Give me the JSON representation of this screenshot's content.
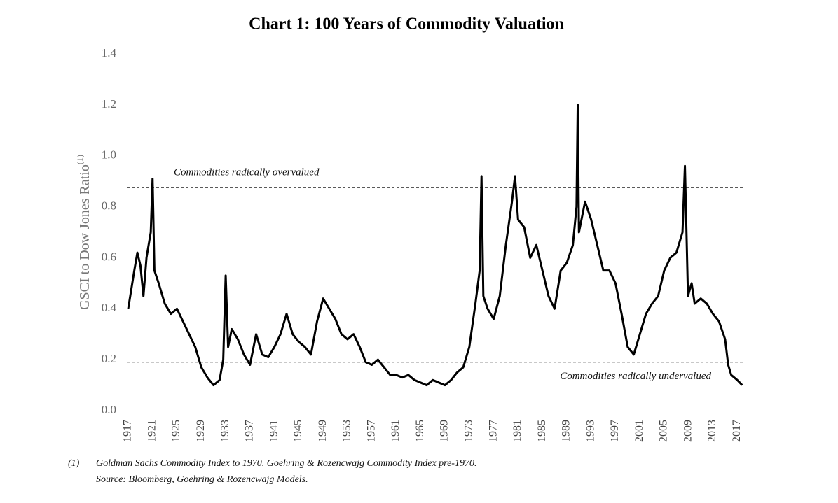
{
  "chart_data": {
    "type": "line",
    "title": "Chart 1: 100 Years of Commodity Valuation",
    "y_label": "GSCI to Dow Jones Ratio",
    "y_label_note": "(1)",
    "x": [
      1917,
      1918,
      1918.5,
      1919,
      1919.5,
      1920,
      1920.7,
      1921,
      1921.3,
      1922,
      1923,
      1924,
      1925,
      1926,
      1927,
      1928,
      1929,
      1930,
      1931,
      1932,
      1932.6,
      1933,
      1933.4,
      1934,
      1935,
      1936,
      1937,
      1938,
      1939,
      1940,
      1941,
      1942,
      1943,
      1944,
      1945,
      1946,
      1947,
      1948,
      1949,
      1950,
      1951,
      1952,
      1953,
      1954,
      1955,
      1956,
      1957,
      1958,
      1959,
      1960,
      1961,
      1962,
      1963,
      1964,
      1965,
      1966,
      1967,
      1968,
      1969,
      1970,
      1971,
      1972,
      1973,
      1974,
      1974.7,
      1975,
      1975.3,
      1976,
      1977,
      1978,
      1979,
      1980,
      1980.5,
      1981,
      1982,
      1983,
      1984,
      1985,
      1986,
      1987,
      1988,
      1989,
      1990,
      1990.6,
      1990.8,
      1991,
      1992,
      1993,
      1994,
      1995,
      1996,
      1997,
      1998,
      1999,
      2000,
      2001,
      2002,
      2003,
      2004,
      2005,
      2006,
      2007,
      2008,
      2008.4,
      2008.9,
      2009.5,
      2010,
      2011,
      2012,
      2013,
      2014,
      2015,
      2015.5,
      2016,
      2017,
      2017.8
    ],
    "series": [
      {
        "color": "#000000",
        "values": [
          0.4,
          0.55,
          0.62,
          0.57,
          0.45,
          0.6,
          0.7,
          0.91,
          0.55,
          0.5,
          0.42,
          0.38,
          0.4,
          0.35,
          0.3,
          0.25,
          0.17,
          0.13,
          0.1,
          0.12,
          0.2,
          0.53,
          0.25,
          0.32,
          0.28,
          0.22,
          0.18,
          0.3,
          0.22,
          0.21,
          0.25,
          0.3,
          0.38,
          0.3,
          0.27,
          0.25,
          0.22,
          0.35,
          0.44,
          0.4,
          0.36,
          0.3,
          0.28,
          0.3,
          0.25,
          0.19,
          0.18,
          0.2,
          0.17,
          0.14,
          0.14,
          0.13,
          0.14,
          0.12,
          0.11,
          0.1,
          0.12,
          0.11,
          0.1,
          0.12,
          0.15,
          0.17,
          0.25,
          0.42,
          0.55,
          0.92,
          0.45,
          0.4,
          0.36,
          0.45,
          0.65,
          0.82,
          0.92,
          0.75,
          0.72,
          0.6,
          0.65,
          0.55,
          0.45,
          0.4,
          0.55,
          0.58,
          0.65,
          0.8,
          1.2,
          0.7,
          0.82,
          0.75,
          0.65,
          0.55,
          0.55,
          0.5,
          0.38,
          0.25,
          0.22,
          0.3,
          0.38,
          0.42,
          0.45,
          0.55,
          0.6,
          0.62,
          0.7,
          0.96,
          0.45,
          0.5,
          0.42,
          0.44,
          0.42,
          0.38,
          0.35,
          0.28,
          0.18,
          0.14,
          0.12,
          0.1
        ]
      }
    ],
    "xlim": [
      1917,
      2018
    ],
    "xticks": [
      1917,
      1921,
      1925,
      1929,
      1933,
      1937,
      1941,
      1945,
      1949,
      1953,
      1957,
      1961,
      1965,
      1969,
      1973,
      1977,
      1981,
      1985,
      1989,
      1993,
      1997,
      2001,
      2005,
      2009,
      2013,
      2017
    ],
    "ylim": [
      0,
      1.4
    ],
    "yticks": [
      {
        "value": 0,
        "label": "0.0"
      },
      0.2,
      0.4,
      0.6,
      0.8,
      {
        "value": 1,
        "label": "1.0"
      },
      1.2,
      1.4
    ],
    "reference_lines": [
      {
        "value": 0.875,
        "label": "Commodities radically overvalued"
      },
      {
        "value": 0.19,
        "label": "Commodities radically undervalued"
      }
    ],
    "footnote": {
      "marker": "(1)",
      "lines": [
        "Goldman Sachs Commodity Index to 1970.  Goehring & Rozencwajg Commodity Index pre-1970.",
        "Source: Bloomberg, Goehring & Rozencwajg Models."
      ]
    }
  }
}
